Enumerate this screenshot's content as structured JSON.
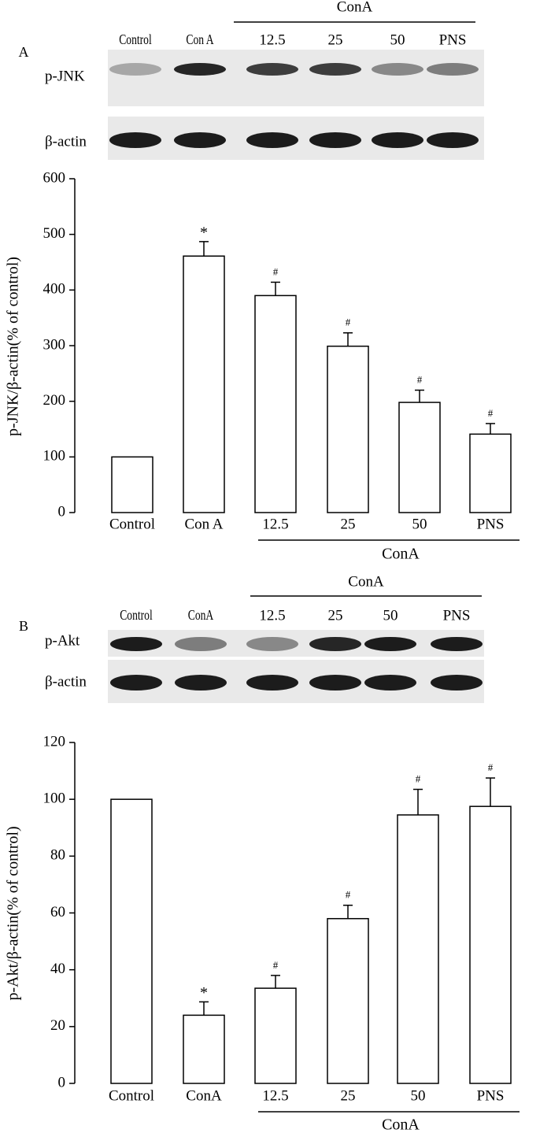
{
  "chart_data": [
    {
      "type": "bar",
      "panel": "A",
      "blot_group": "ConA",
      "blot_lanes": [
        "Control",
        "Con A",
        "12.5",
        "25",
        "50",
        "PNS"
      ],
      "blot_rows": [
        "p-JNK",
        "β-actin"
      ],
      "ylabel": "p-JNK/β-actin(% of control)",
      "categories": [
        "Control",
        "Con A",
        "12.5",
        "25",
        "50",
        "PNS"
      ],
      "group_label": "ConA",
      "values": [
        100,
        461,
        390,
        299,
        198,
        141
      ],
      "errors": [
        0,
        26,
        24,
        24,
        22,
        19
      ],
      "annotations": [
        null,
        "*",
        "#",
        "#",
        "#",
        "#"
      ],
      "color": "#ffffff",
      "ylim": [
        0,
        600
      ],
      "yticks": [
        0,
        100,
        200,
        300,
        400,
        500,
        600
      ]
    },
    {
      "type": "bar",
      "panel": "B",
      "blot_group": "ConA",
      "blot_lanes": [
        "Control",
        "ConA",
        "12.5",
        "25",
        "50",
        "PNS"
      ],
      "blot_rows": [
        "p-Akt",
        "β-actin"
      ],
      "ylabel": "p-Akt/β-actin(% of control)",
      "categories": [
        "Control",
        "ConA",
        "12.5",
        "25",
        "50",
        "PNS"
      ],
      "group_label": "ConA",
      "values": [
        100,
        24,
        33.5,
        58,
        94.5,
        97.5
      ],
      "errors": [
        0,
        4.7,
        4.5,
        4.7,
        9,
        10
      ],
      "annotations": [
        null,
        "*",
        "#",
        "#",
        "#",
        "#"
      ],
      "color": "#ffffff",
      "ylim": [
        0,
        120
      ],
      "yticks": [
        0,
        20,
        40,
        60,
        80,
        100,
        120
      ]
    }
  ]
}
